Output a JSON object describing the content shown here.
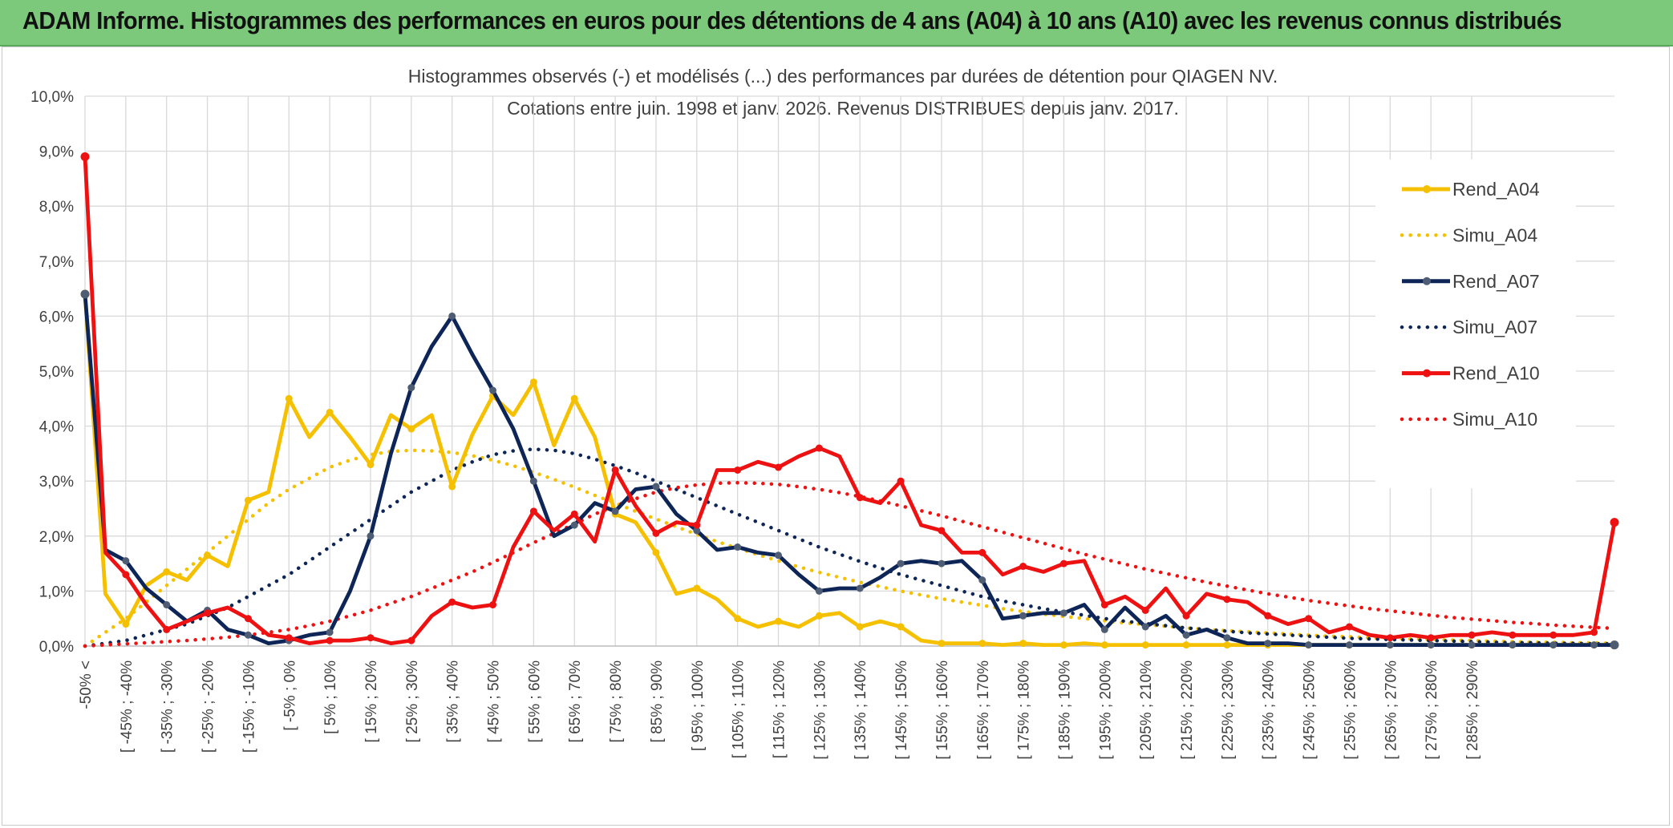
{
  "banner": {
    "title": "ADAM Informe. Histogrammes des performances en euros pour des détentions de 4 ans (A04) à 10 ans (A10) avec les revenus connus distribués",
    "color": "#7dc97c"
  },
  "chart_data": {
    "type": "line",
    "title": "Histogrammes observés (-) et modélisés (...) des performances par durées de détention pour QIAGEN NV.",
    "subtitle": "Cotations entre juin. 1998 et janv. 2026. Revenus DISTRIBUES depuis janv. 2017.",
    "ylim": [
      0,
      10
    ],
    "y_ticks": [
      "0,0%",
      "1,0%",
      "2,0%",
      "3,0%",
      "4,0%",
      "5,0%",
      "6,0%",
      "7,0%",
      "8,0%",
      "9,0%",
      "10,0%"
    ],
    "grid": true,
    "legend_position": "right",
    "x_tick_labels": [
      "-50% <",
      "[ -45% ; -40%",
      "[ -35% ; -30%",
      "[ -25% ; -20%",
      "[ -15% ; -10%",
      "[ -5% ; 0%",
      "[ 5% ; 10%",
      "[ 15% ; 20%",
      "[ 25% ; 30%",
      "[ 35% ; 40%",
      "[ 45% ; 50%",
      "[ 55% ; 60%",
      "[ 65% ; 70%",
      "[ 75% ; 80%",
      "[ 85% ; 90%",
      "[ 95% ; 100%",
      "[ 105% ; 110%",
      "[ 115% ; 120%",
      "[ 125% ; 130%",
      "[ 135% ; 140%",
      "[ 145% ; 150%",
      "[ 155% ; 160%",
      "[ 165% ; 170%",
      "[ 175% ; 180%",
      "[ 185% ; 190%",
      "[ 195% ; 200%",
      "[ 205% ; 210%",
      "[ 215% ; 220%",
      "[ 225% ; 230%",
      "[ 235% ; 240%",
      "[ 245% ; 250%",
      "[ 255% ; 260%",
      "[ 265% ; 270%",
      "[ 275% ; 280%",
      "[ 285% ; 290%"
    ],
    "series": [
      {
        "name": "Rend_A04",
        "color": "#f5c000",
        "style": "solid",
        "values": [
          6.4,
          0.95,
          0.4,
          1.1,
          1.35,
          1.2,
          1.65,
          1.45,
          2.65,
          2.8,
          4.5,
          3.8,
          4.25,
          3.8,
          3.3,
          4.2,
          3.95,
          4.2,
          2.9,
          3.85,
          4.55,
          4.2,
          4.8,
          3.65,
          4.5,
          3.8,
          2.4,
          2.25,
          1.7,
          0.95,
          1.05,
          0.85,
          0.5,
          0.35,
          0.45,
          0.35,
          0.55,
          0.6,
          0.35,
          0.45,
          0.35,
          0.1,
          0.05,
          0.05,
          0.05,
          0.02,
          0.05,
          0.02,
          0.02,
          0.05,
          0.02,
          0.02,
          0.02,
          0.02,
          0.02,
          0.02,
          0.02,
          0.02,
          0.02,
          0.02,
          0.02,
          0.02,
          0.02,
          0.02,
          0.02,
          0.02,
          0.02,
          0.02,
          0.02,
          0.02,
          0.02,
          0.02,
          0.02,
          0.02,
          0.02,
          0.02
        ]
      },
      {
        "name": "Simu_A04",
        "color": "#f5c000",
        "style": "dotted",
        "values": [
          0.0,
          0.25,
          0.5,
          0.8,
          1.1,
          1.4,
          1.7,
          2.0,
          2.3,
          2.6,
          2.85,
          3.05,
          3.25,
          3.38,
          3.48,
          3.54,
          3.56,
          3.55,
          3.52,
          3.46,
          3.38,
          3.28,
          3.16,
          3.03,
          2.89,
          2.74,
          2.6,
          2.45,
          2.31,
          2.17,
          2.03,
          1.9,
          1.78,
          1.66,
          1.55,
          1.44,
          1.34,
          1.25,
          1.16,
          1.08,
          1.0,
          0.93,
          0.86,
          0.8,
          0.74,
          0.68,
          0.63,
          0.58,
          0.54,
          0.5,
          0.46,
          0.42,
          0.39,
          0.36,
          0.33,
          0.3,
          0.28,
          0.26,
          0.24,
          0.22,
          0.2,
          0.18,
          0.17,
          0.15,
          0.14,
          0.13,
          0.12,
          0.11,
          0.1,
          0.09,
          0.08,
          0.07,
          0.07,
          0.06,
          0.06,
          0.05
        ]
      },
      {
        "name": "Rend_A07",
        "color": "#0d2557",
        "style": "solid",
        "values": [
          6.4,
          1.75,
          1.55,
          1.05,
          0.75,
          0.45,
          0.65,
          0.3,
          0.2,
          0.05,
          0.1,
          0.2,
          0.25,
          1.0,
          2.0,
          3.5,
          4.7,
          5.45,
          6.0,
          5.3,
          4.65,
          3.95,
          3.0,
          2.0,
          2.2,
          2.6,
          2.45,
          2.85,
          2.9,
          2.4,
          2.1,
          1.75,
          1.8,
          1.7,
          1.65,
          1.3,
          1.0,
          1.05,
          1.05,
          1.25,
          1.5,
          1.55,
          1.5,
          1.55,
          1.2,
          0.5,
          0.55,
          0.6,
          0.6,
          0.75,
          0.3,
          0.7,
          0.35,
          0.55,
          0.2,
          0.3,
          0.15,
          0.05,
          0.05,
          0.05,
          0.02,
          0.02,
          0.02,
          0.02,
          0.02,
          0.02,
          0.02,
          0.02,
          0.02,
          0.02,
          0.02,
          0.02,
          0.02,
          0.02,
          0.02,
          0.02
        ]
      },
      {
        "name": "Simu_A07",
        "color": "#0d2557",
        "style": "dotted",
        "values": [
          0.0,
          0.05,
          0.1,
          0.2,
          0.3,
          0.4,
          0.55,
          0.7,
          0.9,
          1.1,
          1.3,
          1.55,
          1.8,
          2.05,
          2.3,
          2.55,
          2.8,
          3.0,
          3.2,
          3.35,
          3.48,
          3.55,
          3.58,
          3.56,
          3.5,
          3.4,
          3.28,
          3.15,
          3.0,
          2.85,
          2.7,
          2.55,
          2.4,
          2.25,
          2.1,
          1.95,
          1.8,
          1.67,
          1.54,
          1.42,
          1.3,
          1.2,
          1.1,
          1.0,
          0.9,
          0.82,
          0.75,
          0.68,
          0.62,
          0.56,
          0.5,
          0.45,
          0.41,
          0.37,
          0.33,
          0.3,
          0.27,
          0.24,
          0.22,
          0.2,
          0.18,
          0.16,
          0.14,
          0.13,
          0.12,
          0.11,
          0.1,
          0.09,
          0.08,
          0.07,
          0.06,
          0.06,
          0.05,
          0.05,
          0.04,
          0.04
        ]
      },
      {
        "name": "Rend_A10",
        "color": "#ee1111",
        "style": "solid",
        "values": [
          8.9,
          1.7,
          1.3,
          0.75,
          0.3,
          0.45,
          0.6,
          0.7,
          0.5,
          0.2,
          0.15,
          0.05,
          0.1,
          0.1,
          0.15,
          0.05,
          0.1,
          0.55,
          0.8,
          0.7,
          0.75,
          1.8,
          2.45,
          2.1,
          2.4,
          1.9,
          3.2,
          2.55,
          2.05,
          2.25,
          2.2,
          3.2,
          3.2,
          3.35,
          3.25,
          3.45,
          3.6,
          3.45,
          2.7,
          2.6,
          3.0,
          2.2,
          2.1,
          1.7,
          1.7,
          1.3,
          1.45,
          1.35,
          1.5,
          1.55,
          0.75,
          0.9,
          0.65,
          1.05,
          0.55,
          0.95,
          0.85,
          0.8,
          0.55,
          0.4,
          0.5,
          0.25,
          0.35,
          0.2,
          0.15,
          0.2,
          0.15,
          0.2,
          0.2,
          0.25,
          0.2,
          0.2,
          0.2,
          0.2,
          0.25,
          2.25
        ]
      },
      {
        "name": "Simu_A10",
        "color": "#ee1111",
        "style": "dotted",
        "values": [
          0.0,
          0.02,
          0.04,
          0.06,
          0.08,
          0.1,
          0.13,
          0.16,
          0.2,
          0.25,
          0.3,
          0.37,
          0.45,
          0.55,
          0.65,
          0.78,
          0.9,
          1.05,
          1.2,
          1.35,
          1.52,
          1.7,
          1.88,
          2.05,
          2.22,
          2.4,
          2.55,
          2.68,
          2.8,
          2.88,
          2.93,
          2.96,
          2.97,
          2.96,
          2.94,
          2.9,
          2.85,
          2.79,
          2.72,
          2.64,
          2.55,
          2.46,
          2.37,
          2.27,
          2.17,
          2.07,
          1.97,
          1.87,
          1.77,
          1.67,
          1.58,
          1.49,
          1.4,
          1.32,
          1.24,
          1.16,
          1.09,
          1.02,
          0.95,
          0.89,
          0.83,
          0.78,
          0.73,
          0.68,
          0.64,
          0.6,
          0.56,
          0.52,
          0.49,
          0.46,
          0.43,
          0.41,
          0.38,
          0.36,
          0.34,
          0.32
        ]
      }
    ]
  }
}
